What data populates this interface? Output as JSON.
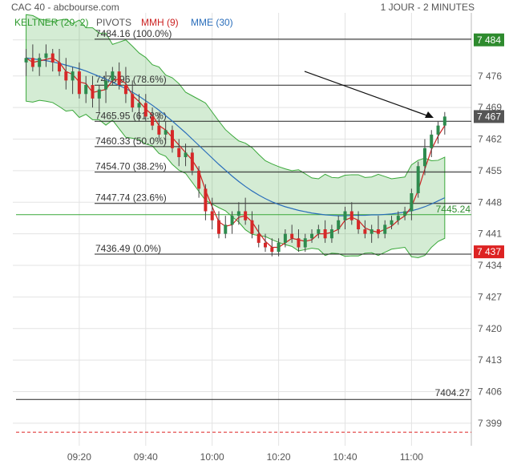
{
  "header": {
    "title": "CAC 40 - abcbourse.com",
    "period": "1 JOUR - 2 MINUTES"
  },
  "legend": [
    {
      "label": "KELTNER (20, 2)",
      "color": "#2e9a2e"
    },
    {
      "label": "PIVOTS",
      "color": "#555555"
    },
    {
      "label": "MMH (9)",
      "color": "#cc2222"
    },
    {
      "label": "MME (30)",
      "color": "#2a6ebb"
    }
  ],
  "chart_data": {
    "type": "candlestick",
    "ylim": [
      7394,
      7490
    ],
    "y_ticks": [
      7484,
      7476,
      7469,
      7462,
      7455,
      7448,
      7441,
      7434,
      7427,
      7420,
      7413,
      7406,
      7399
    ],
    "y_tick_labels": [
      "7 484",
      "7 476",
      "7 469",
      "7 462",
      "7 455",
      "7 448",
      "7 441",
      "7 434",
      "7 427",
      "7 420",
      "7 413",
      "7 406",
      "7 399"
    ],
    "x_ticks": [
      "09:20",
      "09:40",
      "10:00",
      "10:20",
      "10:40",
      "11:00"
    ],
    "x_tick_minutes": [
      20,
      40,
      60,
      80,
      100,
      120
    ],
    "x_range_minutes": [
      0,
      138
    ],
    "fib_levels": [
      {
        "value": 7484.16,
        "label": "7484.16  (100.0%)"
      },
      {
        "value": 7473.96,
        "label": "7473.96  (78.6%)"
      },
      {
        "value": 7465.95,
        "label": "7465.95  (61.8%)"
      },
      {
        "value": 7460.33,
        "label": "7460.33  (50.0%)"
      },
      {
        "value": 7454.7,
        "label": "7454.70  (38.2%)"
      },
      {
        "value": 7447.74,
        "label": "7447.74  (23.6%)"
      },
      {
        "value": 7436.49,
        "label": "7436.49  (0.0%)"
      }
    ],
    "pivot_level": {
      "value": 7404.27,
      "label": "7404.27"
    },
    "green_level": {
      "value": 7445.24,
      "label": "7445.24"
    },
    "dashed_level": {
      "value": 7397
    },
    "price_tags": [
      {
        "value": 7484,
        "label": "7 484",
        "color": "#2e8b2e"
      },
      {
        "value": 7467,
        "label": "7 467",
        "color": "#555555"
      },
      {
        "value": 7437,
        "label": "7 437",
        "color": "#dd2222"
      }
    ],
    "candles": [
      [
        7479,
        7482,
        7476,
        7480
      ],
      [
        7480,
        7483,
        7477,
        7478
      ],
      [
        7478,
        7481,
        7476,
        7480
      ],
      [
        7480,
        7483,
        7478,
        7481
      ],
      [
        7481,
        7482,
        7477,
        7479
      ],
      [
        7479,
        7482,
        7476,
        7477
      ],
      [
        7477,
        7480,
        7473,
        7475
      ],
      [
        7475,
        7478,
        7472,
        7477
      ],
      [
        7477,
        7479,
        7471,
        7472
      ],
      [
        7472,
        7476,
        7470,
        7474
      ],
      [
        7474,
        7476,
        7469,
        7471
      ],
      [
        7471,
        7474,
        7468,
        7473
      ],
      [
        7473,
        7477,
        7470,
        7475
      ],
      [
        7475,
        7478,
        7474,
        7477
      ],
      [
        7477,
        7479,
        7473,
        7474
      ],
      [
        7474,
        7478,
        7470,
        7472
      ],
      [
        7472,
        7475,
        7468,
        7469
      ],
      [
        7469,
        7472,
        7466,
        7470
      ],
      [
        7470,
        7472,
        7466,
        7467
      ],
      [
        7467,
        7469,
        7464,
        7465
      ],
      [
        7465,
        7468,
        7462,
        7463
      ],
      [
        7463,
        7466,
        7461,
        7464
      ],
      [
        7464,
        7465,
        7459,
        7460
      ],
      [
        7460,
        7462,
        7456,
        7458
      ],
      [
        7458,
        7461,
        7456,
        7459
      ],
      [
        7459,
        7460,
        7454,
        7455
      ],
      [
        7455,
        7456,
        7449,
        7451
      ],
      [
        7451,
        7452,
        7444,
        7446
      ],
      [
        7446,
        7449,
        7442,
        7444
      ],
      [
        7444,
        7446,
        7440,
        7441
      ],
      [
        7441,
        7445,
        7440,
        7443
      ],
      [
        7443,
        7446,
        7441,
        7445
      ],
      [
        7445,
        7448,
        7443,
        7446
      ],
      [
        7446,
        7449,
        7443,
        7444
      ],
      [
        7444,
        7446,
        7440,
        7441
      ],
      [
        7441,
        7443,
        7438,
        7439
      ],
      [
        7439,
        7441,
        7437,
        7438
      ],
      [
        7438,
        7440,
        7436,
        7437
      ],
      [
        7437,
        7440,
        7436,
        7439
      ],
      [
        7439,
        7442,
        7438,
        7441
      ],
      [
        7441,
        7443,
        7439,
        7440
      ],
      [
        7440,
        7442,
        7437,
        7438
      ],
      [
        7438,
        7441,
        7437,
        7440
      ],
      [
        7440,
        7442,
        7439,
        7441
      ],
      [
        7441,
        7443,
        7440,
        7442
      ],
      [
        7442,
        7444,
        7439,
        7440
      ],
      [
        7440,
        7443,
        7439,
        7442
      ],
      [
        7442,
        7445,
        7441,
        7444
      ],
      [
        7444,
        7447,
        7442,
        7446
      ],
      [
        7446,
        7448,
        7443,
        7444
      ],
      [
        7444,
        7446,
        7441,
        7442
      ],
      [
        7442,
        7444,
        7440,
        7441
      ],
      [
        7441,
        7443,
        7439,
        7442
      ],
      [
        7442,
        7445,
        7440,
        7441
      ],
      [
        7441,
        7444,
        7440,
        7443
      ],
      [
        7443,
        7445,
        7442,
        7444
      ],
      [
        7444,
        7446,
        7443,
        7445
      ],
      [
        7445,
        7447,
        7444,
        7446
      ],
      [
        7446,
        7451,
        7444,
        7450
      ],
      [
        7450,
        7457,
        7449,
        7456
      ],
      [
        7456,
        7462,
        7454,
        7460
      ],
      [
        7460,
        7464,
        7458,
        7463
      ],
      [
        7463,
        7466,
        7461,
        7465
      ],
      [
        7465,
        7468,
        7463,
        7467
      ]
    ],
    "mme30": [
      7480,
      7479.8,
      7479.6,
      7479.4,
      7479.1,
      7478.8,
      7478.4,
      7478,
      7477.6,
      7477.1,
      7476.5,
      7475.9,
      7475.3,
      7474.6,
      7473.9,
      7473.2,
      7472.4,
      7471.5,
      7470.5,
      7469.5,
      7468.4,
      7467.2,
      7466,
      7464.7,
      7463.4,
      7462,
      7460.6,
      7459.2,
      7457.8,
      7456.4,
      7455.1,
      7453.8,
      7452.6,
      7451.5,
      7450.5,
      7449.6,
      7448.8,
      7448.1,
      7447.5,
      7447,
      7446.6,
      7446.2,
      7445.9,
      7445.6,
      7445.4,
      7445.2,
      7445.1,
      7445,
      7445,
      7445.1,
      7445.1,
      7445.1,
      7445.2,
      7445.2,
      7445.3,
      7445.4,
      7445.6,
      7445.8,
      7446.1,
      7446.5,
      7447,
      7447.6,
      7448.3,
      7449
    ]
  }
}
